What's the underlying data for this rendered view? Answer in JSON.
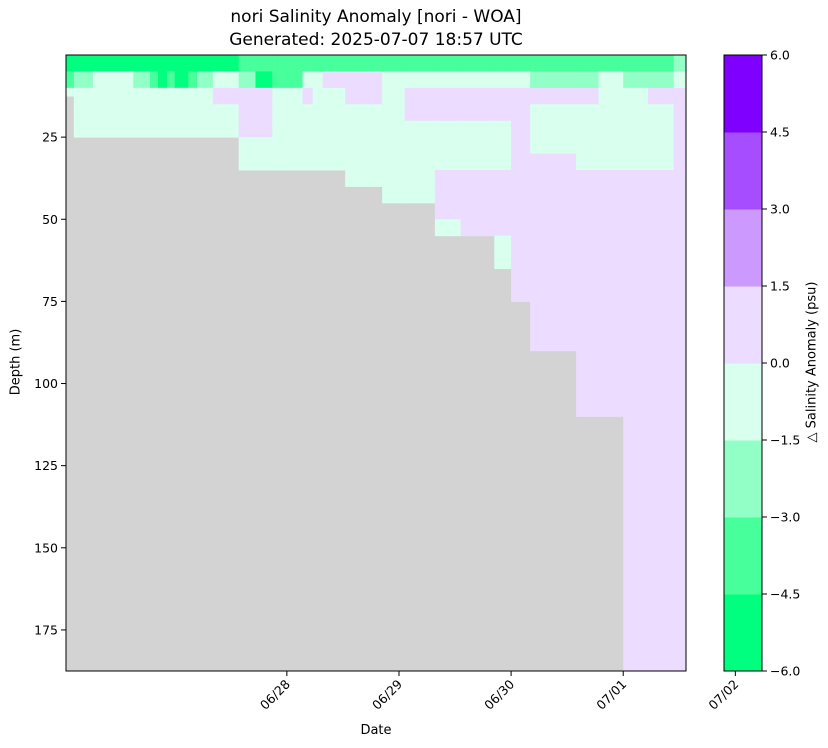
{
  "chart_data": {
    "type": "heatmap",
    "title": "nori Salinity Anomaly [nori - WOA]",
    "subtitle": "Generated: 2025-07-07 18:57 UTC",
    "xlabel": "Date",
    "ylabel": "Depth (m)",
    "colorbar_label": "△ Salinity Anomaly (psu)",
    "x_ticks": [
      {
        "day": 1.0,
        "label": "06/28"
      },
      {
        "day": 2.0,
        "label": "06/29"
      },
      {
        "day": 3.0,
        "label": "06/30"
      },
      {
        "day": 4.0,
        "label": "07/01"
      },
      {
        "day": 5.0,
        "label": "07/02"
      }
    ],
    "xlim": [
      -0.97,
      4.56
    ],
    "y_ticks": [
      25,
      50,
      75,
      100,
      125,
      150,
      175
    ],
    "ylim": [
      187.5,
      0
    ],
    "colorbar": {
      "boundaries": [
        -6.0,
        -4.5,
        -3.0,
        -1.5,
        0.0,
        1.5,
        3.0,
        4.5,
        6.0
      ],
      "tick_labels": [
        "−6.0",
        "−4.5",
        "−3.0",
        "−1.5",
        "0.0",
        "1.5",
        "3.0",
        "4.5",
        "6.0"
      ],
      "colors": [
        "#00ff7f",
        "#47ff9b",
        "#91ffc6",
        "#d9ffee",
        "#ecdcff",
        "#cc99ff",
        "#a64dff",
        "#7f00ff"
      ]
    },
    "no_data_color": "#d3d3d3",
    "profiles": [
      {
        "x0": -0.97,
        "x1": -0.9,
        "max_depth": 12.5,
        "values": [
          -5.0,
          -3.5,
          -0.5
        ]
      },
      {
        "x0": -0.9,
        "x1": -0.73,
        "max_depth": 25,
        "values": [
          -5.0,
          -2.5,
          -0.5,
          -0.5,
          -0.5
        ]
      },
      {
        "x0": -0.73,
        "x1": -0.37,
        "max_depth": 25,
        "values": [
          -5.0,
          -0.5,
          -0.5,
          -0.5,
          -0.5
        ]
      },
      {
        "x0": -0.37,
        "x1": -0.22,
        "max_depth": 25,
        "values": [
          -5.0,
          -2.5,
          -0.5,
          -0.5,
          -0.5
        ]
      },
      {
        "x0": -0.22,
        "x1": -0.15,
        "max_depth": 25,
        "values": [
          -5.0,
          -3.5,
          -0.5,
          -0.5,
          -0.5
        ]
      },
      {
        "x0": -0.15,
        "x1": -0.07,
        "max_depth": 25,
        "values": [
          -5.0,
          -5.0,
          -0.5,
          -0.5,
          -0.5
        ]
      },
      {
        "x0": -0.07,
        "x1": 0.0,
        "max_depth": 25,
        "values": [
          -5.0,
          -3.5,
          -0.5,
          -0.5,
          -0.5
        ]
      },
      {
        "x0": 0.0,
        "x1": 0.12,
        "max_depth": 25,
        "values": [
          -5.0,
          -5.0,
          -0.5,
          -0.5,
          -0.5
        ]
      },
      {
        "x0": 0.12,
        "x1": 0.2,
        "max_depth": 25,
        "values": [
          -5.0,
          -3.5,
          -0.5,
          -0.5,
          -0.5
        ]
      },
      {
        "x0": 0.2,
        "x1": 0.34,
        "max_depth": 25,
        "values": [
          -5.0,
          -2.5,
          -0.5,
          -0.5,
          -0.5
        ]
      },
      {
        "x0": 0.34,
        "x1": 0.52,
        "max_depth": 25,
        "values": [
          -5.0,
          -0.5,
          0.5,
          -0.5,
          -0.5
        ]
      },
      {
        "x0": 0.52,
        "x1": 0.57,
        "max_depth": 25,
        "values": [
          -5.0,
          -0.5,
          0.5,
          -0.5,
          -0.5
        ]
      },
      {
        "x0": 0.57,
        "x1": 0.72,
        "max_depth": 35,
        "values": [
          -3.5,
          -2.5,
          0.5,
          0.5,
          0.5,
          -0.5,
          -0.5
        ]
      },
      {
        "x0": 0.72,
        "x1": 0.87,
        "max_depth": 35,
        "values": [
          -3.5,
          -5.0,
          0.5,
          0.5,
          0.5,
          -0.5,
          -0.5
        ]
      },
      {
        "x0": 0.87,
        "x1": 0.92,
        "max_depth": 35,
        "values": [
          -3.5,
          -3.5,
          -0.5,
          -0.5,
          -0.5,
          -0.5,
          -0.5
        ]
      },
      {
        "x0": 0.92,
        "x1": 1.14,
        "max_depth": 35,
        "values": [
          -3.5,
          -3.5,
          -0.5,
          -0.5,
          -0.5,
          -0.5,
          -0.5
        ]
      },
      {
        "x0": 1.14,
        "x1": 1.23,
        "max_depth": 35,
        "values": [
          -3.5,
          -0.5,
          0.5,
          -0.5,
          -0.5,
          -0.5,
          -0.5
        ]
      },
      {
        "x0": 1.23,
        "x1": 1.32,
        "max_depth": 35,
        "values": [
          -3.5,
          -0.5,
          -0.5,
          -0.5,
          -0.5,
          -0.5,
          -0.5
        ]
      },
      {
        "x0": 1.32,
        "x1": 1.52,
        "max_depth": 35,
        "values": [
          -3.5,
          0.5,
          -0.5,
          -0.5,
          -0.5,
          -0.5,
          -0.5
        ]
      },
      {
        "x0": 1.52,
        "x1": 1.85,
        "max_depth": 40,
        "values": [
          -3.5,
          0.5,
          0.5,
          -0.5,
          -0.5,
          -0.5,
          -0.5,
          -0.5
        ]
      },
      {
        "x0": 1.85,
        "x1": 2.05,
        "max_depth": 45,
        "values": [
          -3.5,
          -0.5,
          -0.5,
          -0.5,
          -0.5,
          -0.5,
          -0.5,
          -0.5,
          -0.5
        ]
      },
      {
        "x0": 2.05,
        "x1": 2.32,
        "max_depth": 45,
        "values": [
          -3.5,
          -0.5,
          0.5,
          0.5,
          -0.5,
          -0.5,
          -0.5,
          -0.5,
          -0.5
        ]
      },
      {
        "x0": 2.32,
        "x1": 2.55,
        "max_depth": 55,
        "values": [
          -3.5,
          -0.5,
          0.5,
          0.5,
          -0.5,
          -0.5,
          -0.5,
          0.5,
          0.5,
          0.5,
          -0.5
        ]
      },
      {
        "x0": 2.55,
        "x1": 2.85,
        "max_depth": 55,
        "values": [
          -3.5,
          -0.5,
          0.5,
          0.5,
          -0.5,
          -0.5,
          -0.5,
          0.5,
          0.5,
          0.5,
          0.5
        ]
      },
      {
        "x0": 2.85,
        "x1": 3.0,
        "max_depth": 65,
        "values": [
          -3.5,
          -0.5,
          0.5,
          0.5,
          -0.5,
          -0.5,
          -0.5,
          0.5,
          0.5,
          0.5,
          0.5,
          -0.5,
          -0.5
        ]
      },
      {
        "x0": 3.0,
        "x1": 3.17,
        "max_depth": 75,
        "values": [
          -3.5,
          -0.5,
          0.5,
          0.5,
          0.5,
          0.5,
          0.5,
          0.5,
          0.5,
          0.5,
          0.5,
          0.5,
          0.5,
          0.5,
          0.5
        ]
      },
      {
        "x0": 3.17,
        "x1": 3.58,
        "max_depth": 90,
        "values": [
          -3.5,
          -2.5,
          0.5,
          -0.5,
          -0.5,
          -0.5,
          0.5,
          0.5,
          0.5,
          0.5,
          0.5,
          0.5,
          0.5,
          0.5,
          0.5,
          0.5,
          0.5,
          0.5
        ]
      },
      {
        "x0": 3.58,
        "x1": 3.78,
        "max_depth": 110,
        "values": [
          -3.5,
          -2.5,
          0.5,
          -0.5,
          -0.5,
          -0.5,
          -0.5,
          0.5,
          0.5,
          0.5,
          0.5,
          0.5,
          0.5,
          0.5,
          0.5,
          0.5,
          0.5,
          0.5,
          0.5,
          0.5,
          0.5,
          0.5
        ]
      },
      {
        "x0": 3.78,
        "x1": 4.0,
        "max_depth": 110,
        "values": [
          -3.5,
          -0.5,
          -0.5,
          -0.5,
          -0.5,
          -0.5,
          -0.5,
          0.5,
          0.5,
          0.5,
          0.5,
          0.5,
          0.5,
          0.5,
          0.5,
          0.5,
          0.5,
          0.5,
          0.5,
          0.5,
          0.5,
          0.5
        ]
      },
      {
        "x0": 4.0,
        "x1": 4.22,
        "max_depth": 187.5,
        "values": [
          -3.5,
          -2.5,
          -0.5,
          -0.5,
          -0.5,
          -0.5,
          -0.5,
          0.5,
          0.5,
          0.5,
          0.5,
          0.5,
          0.5,
          0.5,
          0.5,
          0.5,
          0.5,
          0.5,
          0.5,
          0.5,
          0.5,
          0.5,
          0.5,
          0.5,
          0.5,
          0.5,
          0.5,
          0.5,
          0.5,
          0.5,
          0.5,
          0.5,
          0.5,
          0.5,
          0.5,
          0.5,
          0.5,
          0.5
        ]
      },
      {
        "x0": 4.22,
        "x1": 4.45,
        "max_depth": 187.5,
        "values": [
          -3.5,
          -2.5,
          0.5,
          -0.5,
          -0.5,
          -0.5,
          -0.5,
          0.5,
          0.5,
          0.5,
          0.5,
          0.5,
          0.5,
          0.5,
          0.5,
          0.5,
          0.5,
          0.5,
          0.5,
          0.5,
          0.5,
          0.5,
          0.5,
          0.5,
          0.5,
          0.5,
          0.5,
          0.5,
          0.5,
          0.5,
          0.5,
          0.5,
          0.5,
          0.5,
          0.5,
          0.5,
          0.5,
          0.5
        ]
      },
      {
        "x0": 4.45,
        "x1": 4.56,
        "max_depth": 187.5,
        "values": [
          -2.5,
          -0.5,
          0.5,
          0.5,
          0.5,
          0.5,
          0.5,
          0.5,
          0.5,
          0.5,
          0.5,
          0.5,
          0.5,
          0.5,
          0.5,
          0.5,
          0.5,
          0.5,
          0.5,
          0.5,
          0.5,
          0.5,
          0.5,
          0.5,
          0.5,
          0.5,
          0.5,
          0.5,
          0.5,
          0.5,
          0.5,
          0.5,
          0.5,
          0.5,
          0.5,
          0.5,
          0.5,
          0.5
        ]
      }
    ]
  }
}
